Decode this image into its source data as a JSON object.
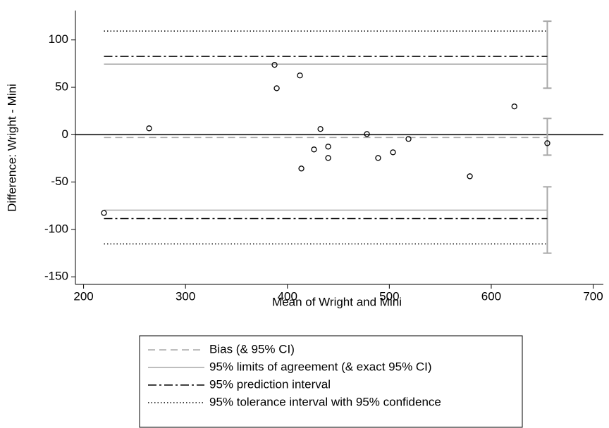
{
  "chart_data": {
    "type": "scatter",
    "xlabel": "Mean of Wright and Mini",
    "ylabel": "Difference:  Wright - Mini",
    "x": [
      220,
      264.3,
      387.4,
      389.5,
      412.3,
      413.7,
      426.1,
      432.4,
      440,
      440,
      478,
      489,
      503.6,
      518.8,
      579,
      622.7,
      655
    ],
    "y": [
      -82.6,
      6.7,
      73.7,
      49,
      62.5,
      -35.7,
      -15.6,
      6,
      -12.6,
      -24.6,
      0.7,
      -24.6,
      -18.6,
      -4.5,
      -43.9,
      29.8,
      -9
    ],
    "xlim": [
      192,
      710
    ],
    "ylim": [
      -158,
      131
    ],
    "xticks": [
      200,
      300,
      400,
      500,
      600,
      700
    ],
    "yticks": [
      100,
      50,
      0,
      -50,
      -100,
      -150
    ],
    "zero_line": 0,
    "intervals": [
      {
        "name": "Bias (& 95% CI)",
        "color": "#a8a8a8",
        "dash": "dashed",
        "values": [
          -3.0
        ],
        "ci": [
          [
            17.1,
            -21.6
          ]
        ]
      },
      {
        "name": "95% limits of agreement (& exact 95% CI)",
        "color": "#a8a8a8",
        "dash": "solid",
        "values": [
          74.4,
          -79.6
        ],
        "ci": [
          [
            119.8,
            49.1
          ],
          [
            -55,
            -125
          ]
        ]
      },
      {
        "name": "95% prediction interval",
        "color": "#000000",
        "dash": "dashdot",
        "values": [
          82.6,
          -88.5
        ]
      },
      {
        "name": "95% tolerance interval with 95% confidence",
        "color": "#000000",
        "dash": "dotted",
        "values": [
          109.4,
          -115.3
        ]
      }
    ]
  }
}
